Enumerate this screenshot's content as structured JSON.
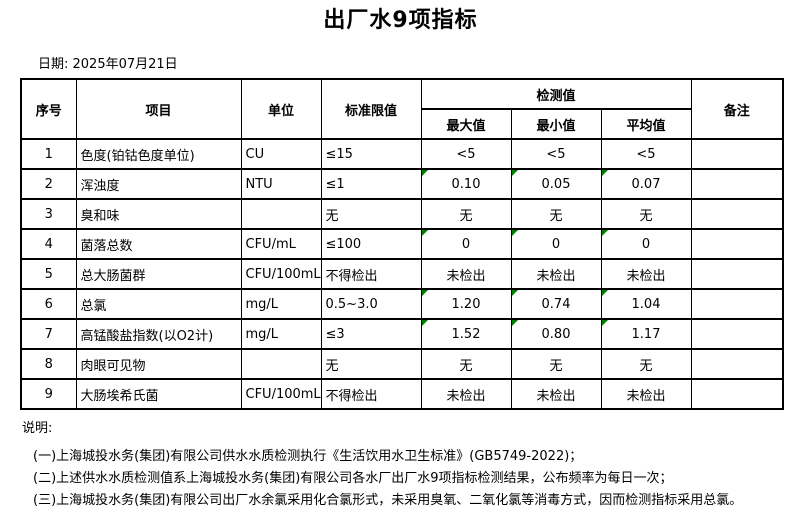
{
  "title": "出厂水9项指标",
  "date_line": "日期: 2025年07月21日",
  "colors": {
    "background": "#ffffff",
    "border": "#000000",
    "flag_triangle_green": "#008000"
  },
  "table": {
    "headers": {
      "no": "序号",
      "item": "项目",
      "unit": "单位",
      "limit": "标准限值",
      "detection_group": "检测值",
      "max": "最大值",
      "min": "最小值",
      "avg": "平均值",
      "remark": "备注"
    },
    "rows": [
      {
        "no": "1",
        "item": "色度(铂钴色度单位)",
        "unit": "CU",
        "limit": "≤15",
        "max": "<5",
        "min": "<5",
        "avg": "<5",
        "remark": "",
        "green_flag": false
      },
      {
        "no": "2",
        "item": "浑浊度",
        "unit": "NTU",
        "limit": "≤1",
        "max": "0.10",
        "min": "0.05",
        "avg": "0.07",
        "remark": "",
        "green_flag": true
      },
      {
        "no": "3",
        "item": "臭和味",
        "unit": "",
        "limit": "无",
        "max": "无",
        "min": "无",
        "avg": "无",
        "remark": "",
        "green_flag": false
      },
      {
        "no": "4",
        "item": "菌落总数",
        "unit": "CFU/mL",
        "limit": "≤100",
        "max": "0",
        "min": "0",
        "avg": "0",
        "remark": "",
        "green_flag": true
      },
      {
        "no": "5",
        "item": "总大肠菌群",
        "unit": "CFU/100mL",
        "limit": "不得检出",
        "max": "未检出",
        "min": "未检出",
        "avg": "未检出",
        "remark": "",
        "green_flag": false
      },
      {
        "no": "6",
        "item": "总氯",
        "unit": "mg/L",
        "limit": "0.5~3.0",
        "max": "1.20",
        "min": "0.74",
        "avg": "1.04",
        "remark": "",
        "green_flag": true
      },
      {
        "no": "7",
        "item": "高锰酸盐指数(以O2计)",
        "unit": "mg/L",
        "limit": "≤3",
        "max": "1.52",
        "min": "0.80",
        "avg": "1.17",
        "remark": "",
        "green_flag": true
      },
      {
        "no": "8",
        "item": "肉眼可见物",
        "unit": "",
        "limit": "无",
        "max": "无",
        "min": "无",
        "avg": "无",
        "remark": "",
        "green_flag": false
      },
      {
        "no": "9",
        "item": "大肠埃希氏菌",
        "unit": "CFU/100mL",
        "limit": "不得检出",
        "max": "未检出",
        "min": "未检出",
        "avg": "未检出",
        "remark": "",
        "green_flag": false
      }
    ]
  },
  "notes": {
    "label": "说明:",
    "lines": [
      "(一)上海城投水务(集团)有限公司供水水质检测执行《生活饮用水卫生标准》(GB5749-2022)；",
      "(二)上述供水水质检测值系上海城投水务(集团)有限公司各水厂出厂水9项指标检测结果，公布频率为每日一次；",
      "(三)上海城投水务(集团)有限公司出厂水余氯采用化合氯形式，未采用臭氧、二氧化氯等消毒方式，因而检测指标采用总氯。"
    ]
  }
}
